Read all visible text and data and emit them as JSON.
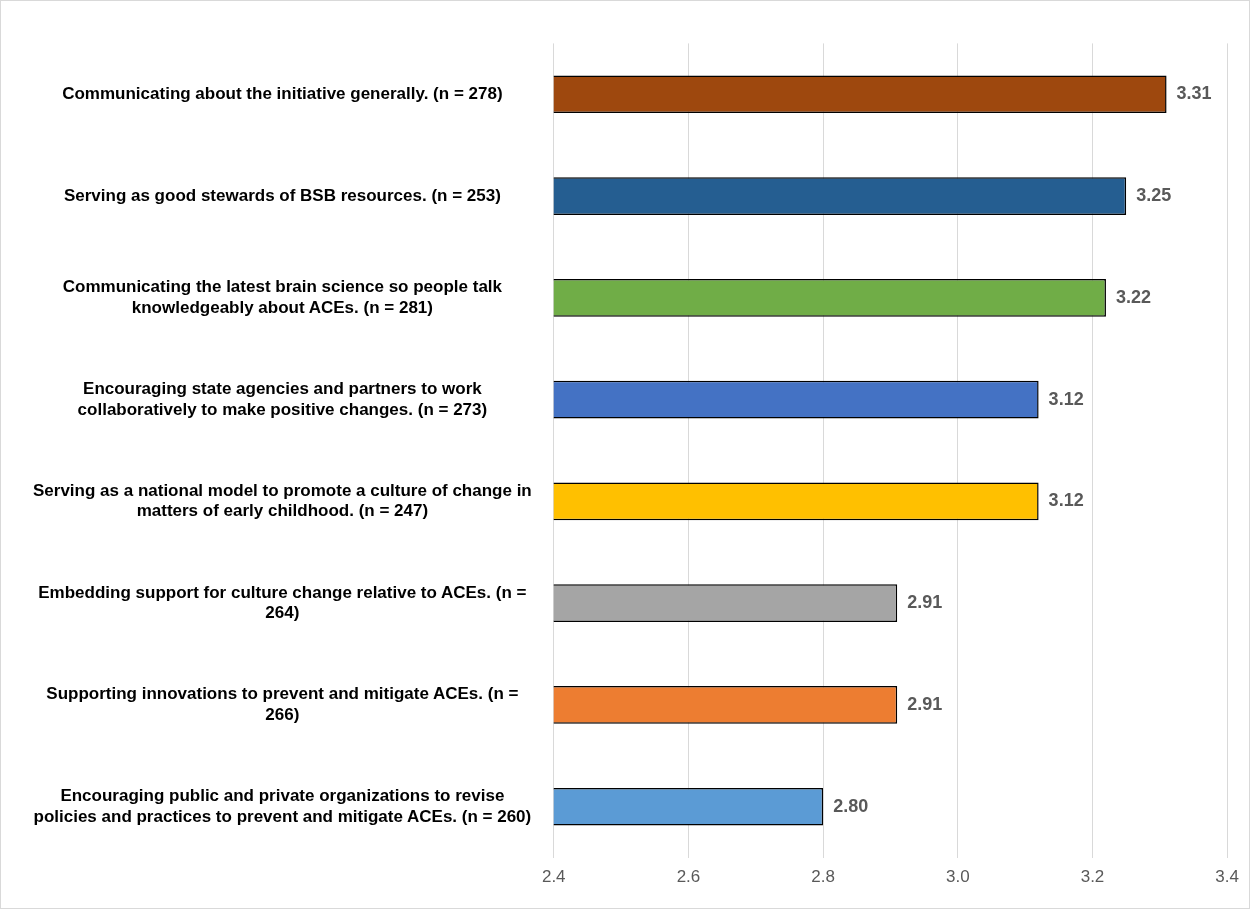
{
  "chart_data": {
    "type": "bar",
    "orientation": "horizontal",
    "categories": [
      "Communicating about the initiative generally. (n = 278)",
      "Serving as good stewards of BSB resources. (n = 253)",
      "Communicating the latest brain science so people talk knowledgeably about ACEs. (n = 281)",
      "Encouraging state agencies and partners to work collaboratively to make positive changes. (n = 273)",
      "Serving as a national model to promote a culture of change in matters of early childhood. (n = 247)",
      "Embedding support for culture change relative to ACEs. (n = 264)",
      "Supporting innovations to prevent and mitigate ACEs. (n = 266)",
      "Encouraging public and private organizations to revise policies and practices to prevent and mitigate ACEs. (n = 260)"
    ],
    "values": [
      3.31,
      3.25,
      3.22,
      3.12,
      3.12,
      2.91,
      2.91,
      2.8
    ],
    "colors": [
      "#9e480e",
      "#255e91",
      "#70ad47",
      "#4472c4",
      "#ffc000",
      "#a5a5a5",
      "#ed7d31",
      "#5b9bd5"
    ],
    "value_labels": [
      "3.31",
      "3.25",
      "3.22",
      "3.12",
      "3.12",
      "2.91",
      "2.91",
      "2.80"
    ],
    "xlim": [
      2.4,
      3.4
    ],
    "xticks": [
      2.4,
      2.6,
      2.8,
      {
        "value": 3.0,
        "label": "3.0"
      },
      3.2,
      3.4
    ],
    "grid": "x",
    "legend": false
  }
}
